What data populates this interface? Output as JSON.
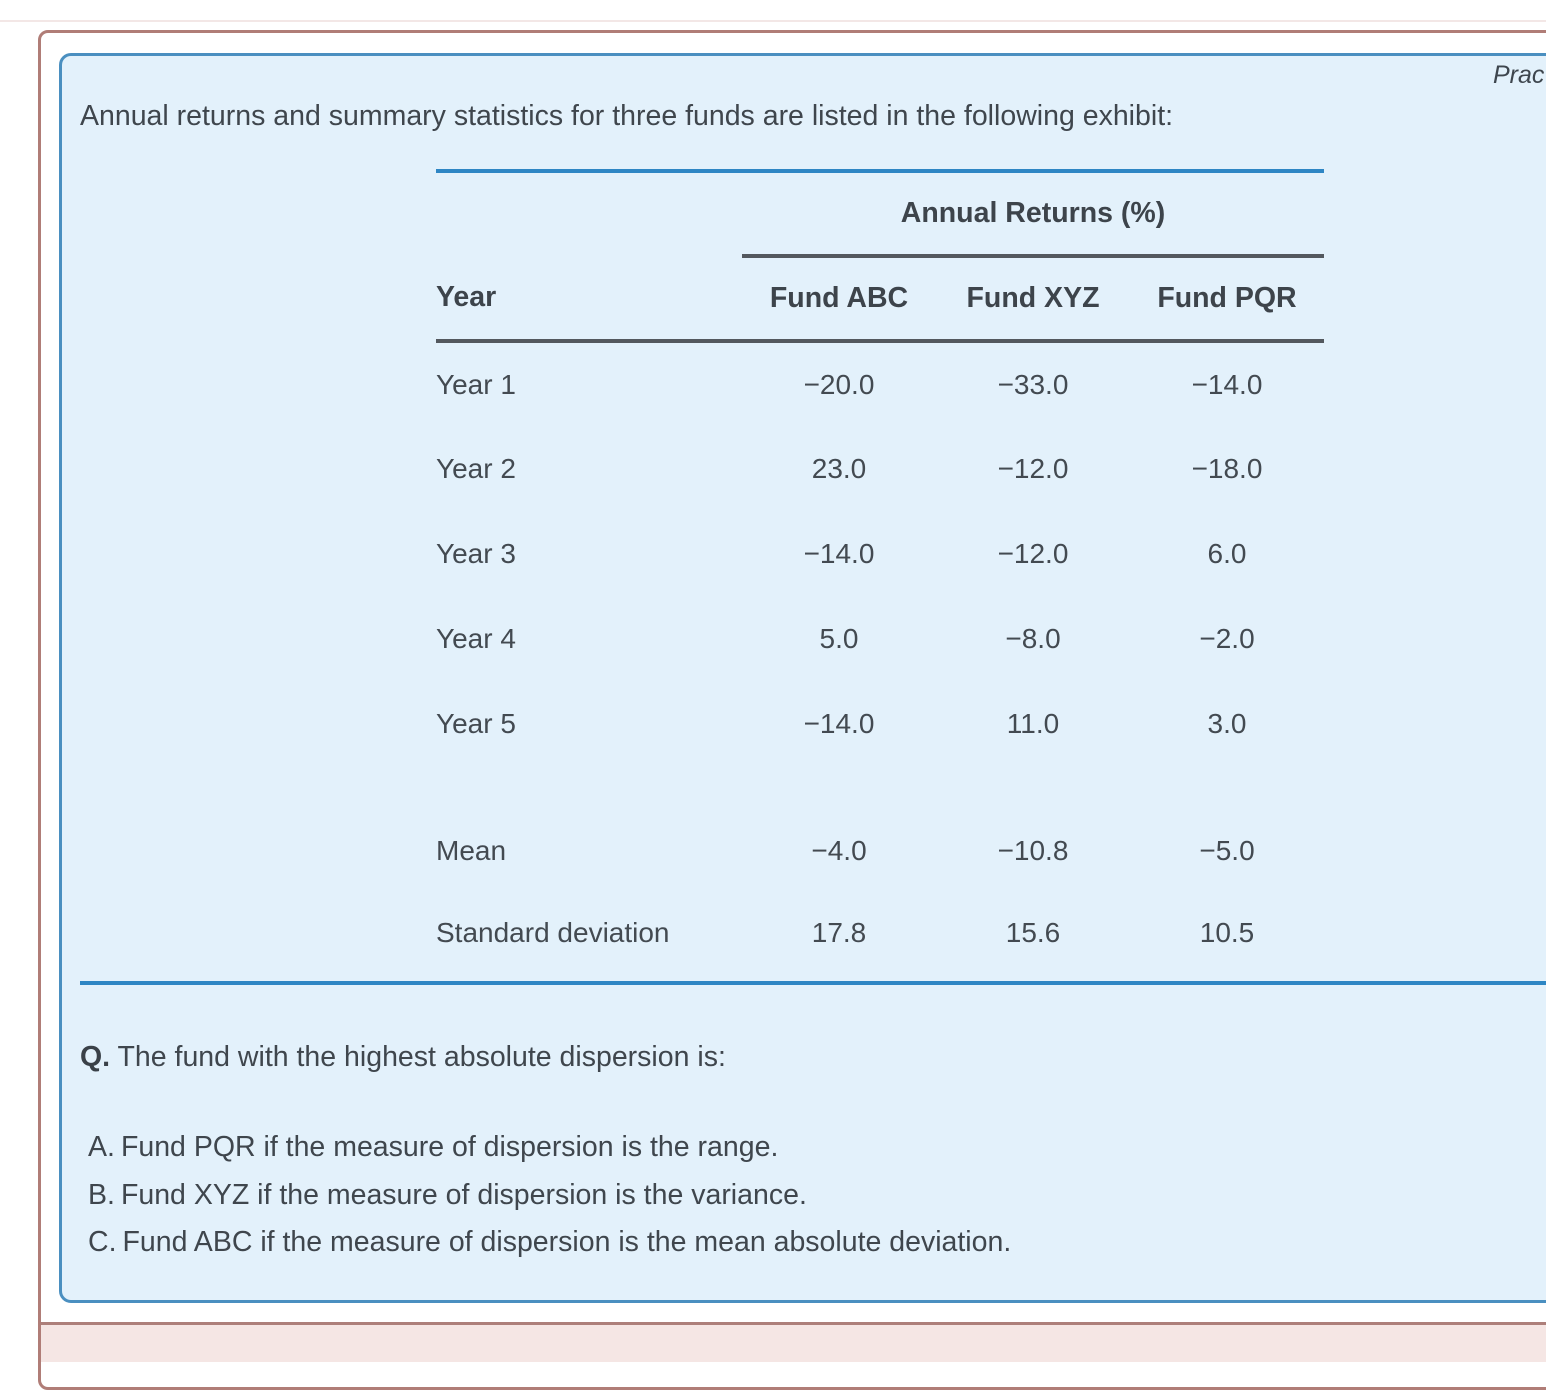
{
  "page": {
    "practice_label": "Prac",
    "intro": "Annual returns and summary statistics for three funds are listed in the following exhibit:"
  },
  "exhibit": {
    "title": "Annual Returns (%)",
    "columns": [
      "Year",
      "Fund ABC",
      "Fund XYZ",
      "Fund PQR"
    ],
    "rows": [
      {
        "label": "Year 1",
        "values": [
          "−20.0",
          "−33.0",
          "−14.0"
        ]
      },
      {
        "label": "Year 2",
        "values": [
          "23.0",
          "−12.0",
          "−18.0"
        ]
      },
      {
        "label": "Year 3",
        "values": [
          "−14.0",
          "−12.0",
          "6.0"
        ]
      },
      {
        "label": "Year 4",
        "values": [
          "5.0",
          "−8.0",
          "−2.0"
        ]
      },
      {
        "label": "Year 5",
        "values": [
          "−14.0",
          "11.0",
          "3.0"
        ]
      }
    ],
    "summary_rows": [
      {
        "label": "Mean",
        "values": [
          "−4.0",
          "−10.8",
          "−5.0"
        ]
      },
      {
        "label": "Standard deviation",
        "values": [
          "17.8",
          "15.6",
          "10.5"
        ]
      }
    ]
  },
  "question": {
    "prefix": "Q.",
    "text": "The fund with the highest absolute dispersion is:",
    "options": [
      {
        "letter": "A.",
        "text": "Fund PQR if the measure of dispersion is the range."
      },
      {
        "letter": "B.",
        "text": "Fund XYZ if the measure of dispersion is the variance."
      },
      {
        "letter": "C.",
        "text": "Fund ABC if the measure of dispersion is the mean absolute deviation."
      }
    ]
  },
  "colors": {
    "panel_background": "#e3f1fb",
    "panel_border": "#4a8fc0",
    "blue_rule": "#2e86c4",
    "dark_rule": "#53585e",
    "outer_border": "#b07d77",
    "answer_section_background": "#f5e6e4",
    "text": "#3f464d"
  }
}
